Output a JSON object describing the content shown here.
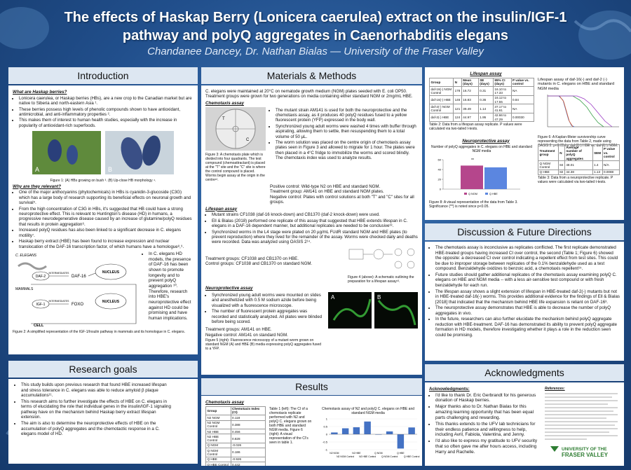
{
  "header": {
    "title_line1": "The effects of Haskap Berry (Lonicera caerulea) extract on the insulin/IGF-1",
    "title_line2": "pathway and polyQ aggregates in Caenorhabditis elegans",
    "authors": "Chandanee Dancey, Dr. Nathan Bialas — University of the Fraser Valley"
  },
  "introduction": {
    "heading": "Introduction",
    "subhead1": "What are Haskap berries?",
    "bullets1": [
      "Lonicera caerulea, or Haskap berries (HBs), are a new crop to the Canadian market but are native to Siberia and north-eastern Asia ¹.",
      "These berries possess high levels of phenolic compounds shown to have antioxidant, antimicrobial, and anti-inflammatory properties ².",
      "This makes them of interest to human health studies, especially with the increase in popularity of antioxidant-rich superfoods."
    ],
    "photo_labels": [
      "A",
      "B"
    ],
    "figure1_caption": "Figure 1: (A) HBs growing on bush ³. (B) Up-close HB morphology ⁴.",
    "subhead2": "Why are they relevant?",
    "bullets2": [
      "One of the major anthocyanins (phytochemicals) in HBs is cyanidin-3-glucoside (C3G) which has a large body of research supporting its beneficial effects on neuronal growth and survival⁵.",
      "From the high concentration of C3G in HBs, it's suggested that HB could have a strong neuroprotective effect. This is relevant to Huntington's disease (HD) in humans, a progressive neurodegenerative disease caused by an increase of glutamine/polyQ residues that results in protein aggregation⁶.",
      "Increased polyQ residues has also been linked to a significant decrease in C. elegans motility⁷.",
      "Haskap berry extract (HBE) has been found to increase expression and nuclear translocation of the DAF-16 transcription factor, of which humans have a homologue⁸,⁹."
    ],
    "diagram": {
      "worm_label": "C. ELEGANS",
      "receptor1": "DAF-2",
      "intermediates1": "INTERMEDIATES",
      "factor1": "DAF-16",
      "nucleus1": "NUCLEUS",
      "mammal_label": "MAMMALS",
      "receptor2": "IGF-1",
      "intermediates2": "INTERMEDIATES",
      "factor2": "FOXO",
      "nucleus2": "NUCLEUS",
      "cell_label": "CELL"
    },
    "side_text": "In C. elegans HD models, the presence of DAF-16 has been shown to promote longevity and to prevent polyQ aggregation ¹⁰. Therefore, research into HBE's neuroprotective effect against HD could be promising and have human implications.",
    "figure2_caption": "Figure 2: A simplified representation of the IGF-1/Insulin pathway in mammals and its homologue in C. elegans."
  },
  "research_goals": {
    "heading": "Research goals",
    "bullets": [
      "This study builds upon previous research that found HBE increased lifespan and stress tolerance in C. elegans was able to reduce amyloid β plaque accumulations¹¹.",
      "This research aims to further investigate the effects of HBE on C. elegans in terms of elucidating the role that individual genes in the insulin/IGF-1 signaling pathway have on the mechanism behind Haskap berry extract lifespan extension.",
      "The aim is also to determine the neuroprotective effects of HBE on the accumulation of polyQ aggregates and the chemotactic response in a C. elegans model of HD."
    ]
  },
  "methods": {
    "heading": "Materials & Methods",
    "intro": "C. elegans were maintained at 20°C on nematode growth medium (NGM) plates seeded with E. coli OP50. Treatment groups were grown for two generations on media containing either standard NGM or 2mg/mL HBE.",
    "chemotaxis_subhead": "Chemotaxis assay",
    "plate_labels": [
      "T",
      "C"
    ],
    "figure3_caption": "Figure 3: A chemotaxis plate which is divided into four quadrants. The test compound (chemoattractant) is placed at the \"T\" site and the \"C\" site is where the control compound is placed. Worms begin assay at the origin in the centre¹².",
    "chemotaxis_bullets": [
      "The mutant strain AM141 is used for both the neuroprotective and the chemotaxis assay, as it produces 40 polyQ residues fused to a yellow fluorescent protein (YFP) expressed in the body wall.",
      "Synchronized young adult worms were washed 4 times with buffer through aspirating, allowing them to settle, then resuspending them to a total volume of 50 µL.",
      "The worm solution was placed on the centre origin of chemotaxis assay plates seen in Figure 3 and allowed to migrate for 1 hour. The plates were then placed in a 4°C fridge to immobilize the worms and scored blindly. The chemotaxis index was used to analyze results."
    ],
    "chemotaxis_controls": [
      "Positive control: Wild-type N2 on HBE and standard NGM.",
      "Treatment group: AM141 on HBE and standard NGM plates.",
      "Negative control: Plates with control solutions at both \"T\" and \"C\" sites for all groups."
    ],
    "lifespan_subhead": "Lifespan assay",
    "lifespan_bullets": [
      "Mutant strains CF1038 (daf-16 knock-down) and CB1370 (daf-2 knock-down) were used.",
      "Ell & Bialas (2018) performed one replicate of this assay that suggested that HBE extends lifespan in C. elegans in a DAF-16 dependent manner, but additional replicates are needed to be conclusive¹³.",
      "Synchronized worms in the L4 stage were plated on 20 µg/mL FUdR standard NGM and HBE plates (to prevent reproduction) where they lived for the remainder of the assay. Worms were checked daily and deaths were recorded. Data was analyzed using OASIS 2¹⁴."
    ],
    "lifespan_groups": [
      "Treatment groups: CF1038 and CB1370 on HBE.",
      "Control groups: CF1038 and CB1370 on standard NGM."
    ],
    "figure4_caption": "Figure 4 (above): A schematic outlining the preparation for a lifespan assay¹³.",
    "neuro_subhead": "Neuroprotective assay",
    "neuro_bullets": [
      "Synchronized young adult worms were mounted on slides and anesthetized with 0.5 M sodium azide before being visualized with a fluorescence microscope.",
      "The number of fluorescent protein aggregates was recorded and statistically analyzed. All plates were blinded before being scored."
    ],
    "neuro_groups": [
      "Treatment groups: AM141 on HBE.",
      "Negative control: AM141 on standard NGM."
    ],
    "micro_labels": [
      "A",
      "B"
    ],
    "figure5_caption": "Figure 5 (right): Fluorescence microscopy of a mutant worm grown on standard NGM (A) and HBE (B) media expressing polyQ aggregates fused to a YFP."
  },
  "results": {
    "heading": "Results",
    "subhead": "Chemotaxis assay",
    "table": {
      "header": [
        "Group",
        "Chemotaxis Index (CI)"
      ],
      "rows": [
        [
          "N2 NGM",
          0.118
        ],
        [
          "N2 NGM Control",
          0.388
        ],
        [
          "N2 HBE",
          0.456
        ],
        [
          "N2 HBE Control",
          0.828
        ],
        [
          "Q NGM",
          -0.026
        ],
        [
          "Q NGM Control",
          0.186
        ],
        [
          "Q HBE",
          -0.926
        ],
        [
          "Q HBE Control",
          0.442
        ]
      ]
    },
    "caption": "Table 1 (left): The CI of a chemotaxis replicate performed with N2 and polyQ C. elegans grown on both HBE and standard NGM media. Figure 6 (right): A visual representation of the CI's seen in table 1.",
    "chart": {
      "title": "Chemotaxis assay of N2 and polyQ C. elegans on HBE and standard NGM media",
      "color": "#4472c4",
      "ylim": [
        -1,
        1
      ],
      "yticks": [
        -1,
        -0.5,
        0,
        0.5,
        1
      ]
    }
  },
  "lifespan": {
    "subhead": "Lifespan assay",
    "table": {
      "header": [
        "Group",
        "N",
        "Mean (days)",
        "SE (days)",
        "95% CI (days)",
        "P value vs. control"
      ],
      "rows": [
        [
          "daf-16(-) NGM Control",
          178,
          16.72,
          0.31,
          "16.10 to 17.33",
          "NA"
        ],
        [
          "daf-16(-) HBE",
          146,
          16.83,
          0.36,
          "16.12 to 17.55",
          0.84
        ],
        [
          "daf-2(-) NGM Control",
          121,
          39.49,
          1.14,
          "37.17 to 41.61",
          "NA"
        ],
        [
          "daf-2(-) HBE",
          124,
          44.97,
          1.95,
          "42.66 to 47.29",
          "0.00030"
        ]
      ]
    },
    "table_caption": "Table 2: Data from a lifespan assay replicate. P values were calculated via two-tailed t-tests.",
    "chart_title": "Lifespan assay of daf-16(-) and daf-2 (-) mutants in C. elegans on HBE and standard NGM media",
    "figure6_caption": "Figure 6: A Kaplan-Meier survivorship curve representing the data from Table 2, made using OASIS 2. p<0.05 for daf-2(-) HBE vs. daf-2(-) NGM."
  },
  "neuroprotective": {
    "subhead": "Neuroprotective assay",
    "chart": {
      "title": "Number of polyQ aggregates in C. elegans on HBE and standard NGM media",
      "legend": [
        "Q NGM",
        "Q HBE"
      ],
      "colors": [
        "#b5468c",
        "#5b86e0"
      ],
      "significance": "**",
      "ylim": [
        0,
        60
      ],
      "yticks": [
        0,
        20,
        40,
        60
      ]
    },
    "figure8_caption": "Figure 8: A visual representation of the data from Table 3. Significance (**) is noted since p<0.05.",
    "table": {
      "header": [
        "Treatment group",
        "N",
        "Average number of polyQ aggregates",
        "SEM",
        "P value vs. control"
      ],
      "rows": [
        [
          "Q NGM Control",
          84,
          48.01,
          1.4,
          "N/A"
        ],
        [
          "Q HBE",
          82,
          44.38,
          1.13,
          0.0088
        ]
      ]
    },
    "table_caption": "Table 3: Data from a neuroprotective replicate. P values were calculated via two-tailed t-tests."
  },
  "discussion": {
    "heading": "Discussion & Future Directions",
    "bullets": [
      "The chemotaxis assay is inconclusive as replicates conflicted. The first replicate demonstrated HBE-treated groups having increased CI over control, the second (Table 1; Figure 6) showed the opposite: a decreased CI over control indicating a repellent effect from test sites. This could be due to improper storage between replicates of the 0.1% benzaldehyde used as a test compound. Benzaldehyde oxidizes to benzoic acid, a chemotaxis repellent¹⁵.",
      "Future studies should gather additional replicates of the chemotaxis assay examining polyQ C. elegans on HBE and NGM media -- with a less air-sensitive test compound or with fresh benzaldehyde for each run.",
      "The lifespan assay shows a slight extension of lifespan in HBE-treated daf-2(-) mutants but not in HBE-treated daf-16(-) worms. This provides additional evidence for the findings of Ell & Bialas [2018] that indicated that the mechanism behind HBE life expansion is reliant on DAF-16³.",
      "The neuroprotective assay demonstrates that HBE is able to decrease the number of polyQ aggregates in vivo.",
      "In the future, researchers can also further elucidate the mechanism behind polyQ aggregate reduction with HBE-treatment. DAF-16 has demonstrated its ability to prevent polyQ aggregate formation in HD models, therefore investigating whether it plays a role in the reduction seen could be promising."
    ]
  },
  "acknowledgments": {
    "heading": "Acknowledgments",
    "subhead": "Acknowledgments:",
    "bullets": [
      "I'd like to thank Dr. Eric Gerbrandt for his generous donation of Haskap berries.",
      "Major thanks also to Dr. Nathan Bialas for this amazing learning opportunity that has been equal parts challenging and rewarding.",
      "This thanks extends to the UFV lab technicians for their endless patience and willingness to help, including Avril, Fabiola, Valentina, and Jenny.",
      "I'd also like to express my gratitude to UFV security that so often gave me after hours access, including Harry and Rachelle."
    ],
    "references_subhead": "References:",
    "logo_line1": "UNIVERSITY OF THE",
    "logo_line2": "FRASER VALLEY"
  }
}
